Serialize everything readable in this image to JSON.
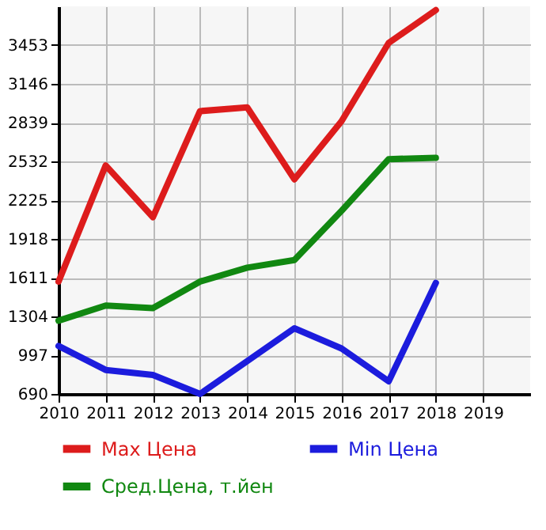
{
  "chart_data": {
    "type": "line",
    "x": [
      2010,
      2011,
      2012,
      2013,
      2014,
      2015,
      2016,
      2017,
      2018
    ],
    "series": [
      {
        "name": "Max Цена",
        "color": "#dd1c1c",
        "values": [
          1580,
          2500,
          2090,
          2930,
          2960,
          2390,
          2850,
          3470,
          3730
        ]
      },
      {
        "name": "Min Цена",
        "color": "#1c1cdd",
        "values": [
          1070,
          880,
          840,
          690,
          950,
          1210,
          1050,
          790,
          1570
        ]
      },
      {
        "name": "Сред.Цена, т.йен",
        "color": "#118811",
        "values": [
          1270,
          1390,
          1370,
          1580,
          1690,
          1750,
          2140,
          2550,
          2560
        ]
      }
    ],
    "xlim": [
      2010,
      2020
    ],
    "xticks": [
      2010,
      2011,
      2012,
      2013,
      2014,
      2015,
      2016,
      2017,
      2018,
      2019
    ],
    "ylim": [
      690,
      3760
    ],
    "yticks": [
      690,
      997,
      1304,
      1611,
      1918,
      2225,
      2532,
      2839,
      3146,
      3453
    ],
    "grid": true,
    "legend": "bottom",
    "marker": "none",
    "line_style": "solid"
  }
}
